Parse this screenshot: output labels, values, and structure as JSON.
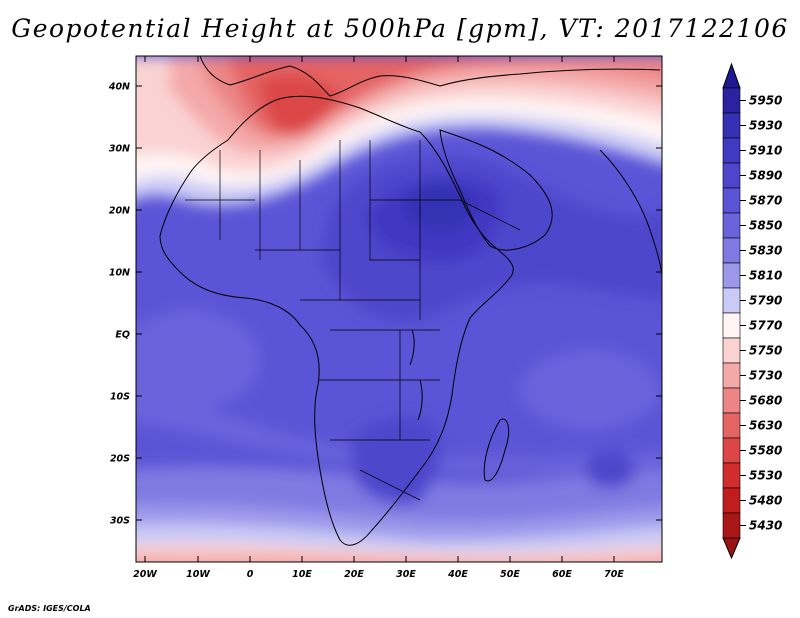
{
  "title": "Geopotential Height at 500hPa [gpm], VT: 2017122106",
  "footer": "GrADS: IGES/COLA",
  "axes": {
    "y_ticks": [
      "40N",
      "30N",
      "20N",
      "10N",
      "EQ",
      "10S",
      "20S",
      "30S"
    ],
    "x_ticks": [
      "20W",
      "10W",
      "0",
      "10E",
      "20E",
      "30E",
      "40E",
      "50E",
      "60E",
      "70E"
    ]
  },
  "colorbar": {
    "levels": [
      "5950",
      "5930",
      "5910",
      "5890",
      "5870",
      "5850",
      "5830",
      "5810",
      "5790",
      "5770",
      "5750",
      "5730",
      "5680",
      "5630",
      "5580",
      "5530",
      "5480",
      "5430"
    ],
    "colors": [
      "#2a22a0",
      "#3530b4",
      "#4039c2",
      "#4d46cc",
      "#5a55d6",
      "#6964dc",
      "#7e7ae2",
      "#9b98ea",
      "#cacaf6",
      "#fff5f5",
      "#fad2d2",
      "#f4a8a8",
      "#ec8686",
      "#e46464",
      "#dc4646",
      "#d22c2c",
      "#c21d1d",
      "#a81616"
    ],
    "top_arrow_color": "#201890",
    "bottom_arrow_color": "#9a1212"
  },
  "map": {
    "background": "#5a55d6",
    "coastline_color": "#000000"
  }
}
